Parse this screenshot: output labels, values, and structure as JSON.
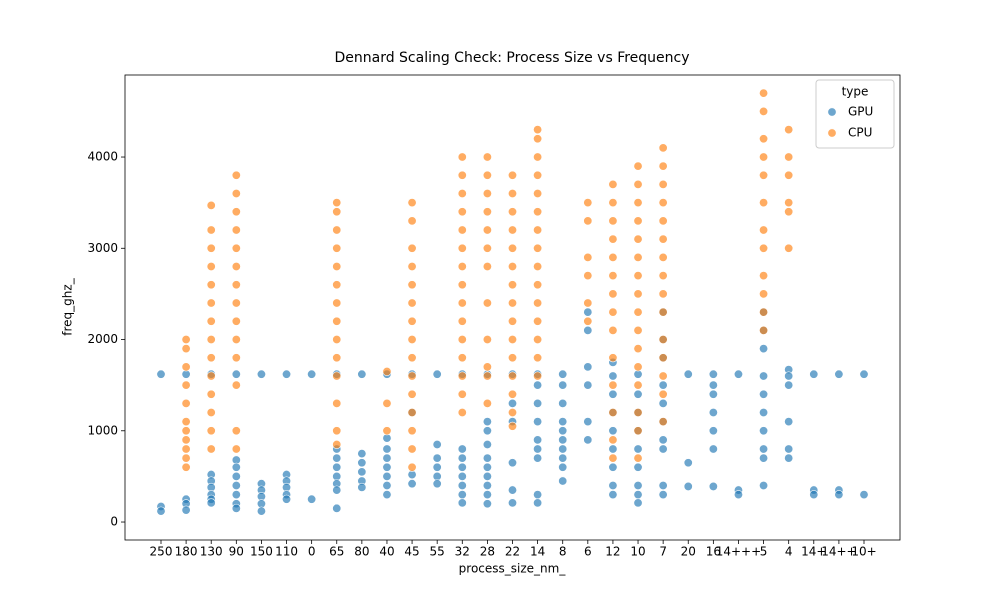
{
  "chart_data": {
    "type": "scatter",
    "title": "Dennard Scaling Check: Process Size vs Frequency",
    "x_label": "process_size_nm_",
    "y_label": "freq_ghz_",
    "legend_title": "type",
    "legend_position": "upper right",
    "categories": [
      "250",
      "180",
      "130",
      "90",
      "150",
      "110",
      "0",
      "65",
      "80",
      "40",
      "45",
      "55",
      "32",
      "28",
      "22",
      "14",
      "8",
      "6",
      "12",
      "10",
      "7",
      "20",
      "16",
      "14+++",
      "5",
      "4",
      "14+",
      "14++",
      "10+"
    ],
    "ylim": [
      -197,
      4899
    ],
    "yticks": [
      0,
      1000,
      2000,
      3000,
      4000
    ],
    "series": [
      {
        "name": "GPU",
        "color": "#1f77b4",
        "x": [
          "250",
          "250",
          "250",
          "180",
          "180",
          "180",
          "180",
          "130",
          "130",
          "130",
          "130",
          "130",
          "130",
          "130",
          "90",
          "90",
          "90",
          "90",
          "90",
          "90",
          "90",
          "90",
          "150",
          "150",
          "150",
          "150",
          "150",
          "150",
          "110",
          "110",
          "110",
          "110",
          "110",
          "110",
          "0",
          "0",
          "65",
          "65",
          "65",
          "65",
          "65",
          "65",
          "65",
          "65",
          "80",
          "80",
          "80",
          "80",
          "80",
          "80",
          "40",
          "40",
          "40",
          "40",
          "40",
          "40",
          "40",
          "40",
          "45",
          "45",
          "45",
          "45",
          "55",
          "55",
          "55",
          "55",
          "55",
          "55",
          "32",
          "32",
          "32",
          "32",
          "32",
          "32",
          "32",
          "32",
          "28",
          "28",
          "28",
          "28",
          "28",
          "28",
          "28",
          "28",
          "28",
          "28",
          "22",
          "22",
          "22",
          "22",
          "22",
          "22",
          "14",
          "14",
          "14",
          "14",
          "14",
          "14",
          "14",
          "14",
          "14",
          "8",
          "8",
          "8",
          "8",
          "8",
          "8",
          "8",
          "8",
          "8",
          "8",
          "6",
          "6",
          "6",
          "6",
          "6",
          "6",
          "12",
          "12",
          "12",
          "12",
          "12",
          "12",
          "12",
          "12",
          "12",
          "10",
          "10",
          "10",
          "10",
          "10",
          "10",
          "10",
          "10",
          "10",
          "7",
          "7",
          "7",
          "7",
          "7",
          "7",
          "7",
          "7",
          "7",
          "7",
          "20",
          "20",
          "20",
          "16",
          "16",
          "16",
          "16",
          "16",
          "16",
          "16",
          "14+++",
          "14+++",
          "14+++",
          "5",
          "5",
          "5",
          "5",
          "5",
          "5",
          "5",
          "5",
          "5",
          "5",
          "4",
          "4",
          "4",
          "4",
          "4",
          "4",
          "14+",
          "14+",
          "14+",
          "14++",
          "14++",
          "14++",
          "10+",
          "10+"
        ],
        "values": [
          1620,
          170,
          120,
          1620,
          250,
          200,
          130,
          1620,
          520,
          450,
          380,
          300,
          250,
          210,
          1620,
          680,
          600,
          500,
          400,
          300,
          200,
          150,
          1620,
          420,
          350,
          280,
          200,
          120,
          1620,
          520,
          450,
          380,
          300,
          250,
          1620,
          250,
          1620,
          800,
          700,
          600,
          500,
          420,
          350,
          150,
          1620,
          750,
          650,
          550,
          450,
          380,
          1620,
          920,
          800,
          700,
          600,
          500,
          400,
          300,
          1620,
          1200,
          520,
          420,
          1620,
          850,
          700,
          600,
          500,
          420,
          1620,
          800,
          700,
          600,
          500,
          400,
          300,
          210,
          1620,
          1100,
          1000,
          850,
          700,
          600,
          500,
          400,
          300,
          200,
          1620,
          1300,
          1100,
          650,
          350,
          210,
          1620,
          1500,
          1300,
          1100,
          900,
          800,
          700,
          300,
          210,
          1620,
          1500,
          1300,
          1100,
          1000,
          900,
          800,
          700,
          600,
          450,
          2300,
          2100,
          1700,
          1500,
          1100,
          900,
          1750,
          1600,
          1400,
          1200,
          1000,
          800,
          600,
          400,
          300,
          1620,
          1400,
          1200,
          1000,
          800,
          600,
          400,
          300,
          210,
          2300,
          2000,
          1800,
          1500,
          1300,
          1100,
          900,
          800,
          400,
          300,
          1620,
          650,
          390,
          1620,
          1500,
          1400,
          1200,
          1000,
          800,
          390,
          1620,
          350,
          300,
          2300,
          2100,
          1900,
          1600,
          1400,
          1200,
          1000,
          800,
          700,
          400,
          1670,
          1600,
          1500,
          1100,
          800,
          700,
          1620,
          350,
          300,
          1620,
          350,
          300,
          1620,
          300
        ]
      },
      {
        "name": "CPU",
        "color": "#ff7f0e",
        "x": [
          "180",
          "180",
          "180",
          "180",
          "180",
          "180",
          "180",
          "180",
          "180",
          "180",
          "180",
          "130",
          "130",
          "130",
          "130",
          "130",
          "130",
          "130",
          "130",
          "130",
          "130",
          "130",
          "130",
          "130",
          "130",
          "90",
          "90",
          "90",
          "90",
          "90",
          "90",
          "90",
          "90",
          "90",
          "90",
          "90",
          "90",
          "90",
          "90",
          "65",
          "65",
          "65",
          "65",
          "65",
          "65",
          "65",
          "65",
          "65",
          "65",
          "65",
          "65",
          "65",
          "65",
          "40",
          "40",
          "40",
          "45",
          "45",
          "45",
          "45",
          "45",
          "45",
          "45",
          "45",
          "45",
          "45",
          "45",
          "45",
          "45",
          "45",
          "45",
          "32",
          "32",
          "32",
          "32",
          "32",
          "32",
          "32",
          "32",
          "32",
          "32",
          "32",
          "32",
          "32",
          "32",
          "32",
          "28",
          "28",
          "28",
          "28",
          "28",
          "28",
          "28",
          "28",
          "28",
          "28",
          "28",
          "28",
          "22",
          "22",
          "22",
          "22",
          "22",
          "22",
          "22",
          "22",
          "22",
          "22",
          "22",
          "22",
          "22",
          "22",
          "22",
          "14",
          "14",
          "14",
          "14",
          "14",
          "14",
          "14",
          "14",
          "14",
          "14",
          "14",
          "14",
          "14",
          "14",
          "14",
          "6",
          "6",
          "6",
          "6",
          "6",
          "6",
          "12",
          "12",
          "12",
          "12",
          "12",
          "12",
          "12",
          "12",
          "12",
          "12",
          "12",
          "12",
          "12",
          "12",
          "10",
          "10",
          "10",
          "10",
          "10",
          "10",
          "10",
          "10",
          "10",
          "10",
          "10",
          "10",
          "10",
          "10",
          "10",
          "10",
          "7",
          "7",
          "7",
          "7",
          "7",
          "7",
          "7",
          "7",
          "7",
          "7",
          "7",
          "7",
          "7",
          "7",
          "7",
          "5",
          "5",
          "5",
          "5",
          "5",
          "5",
          "5",
          "5",
          "5",
          "5",
          "5",
          "5",
          "4",
          "4",
          "4",
          "4",
          "4",
          "4"
        ],
        "values": [
          2000,
          1900,
          1700,
          1500,
          1300,
          1100,
          1000,
          900,
          800,
          700,
          600,
          3470,
          3200,
          3000,
          2800,
          2600,
          2400,
          2200,
          2000,
          1800,
          1600,
          1400,
          1200,
          1000,
          800,
          3800,
          3600,
          3400,
          3200,
          3000,
          2800,
          2600,
          2400,
          2200,
          2000,
          1800,
          1500,
          1000,
          800,
          3500,
          3400,
          3200,
          3000,
          2800,
          2600,
          2400,
          2200,
          2000,
          1800,
          1600,
          1300,
          1000,
          850,
          1650,
          1300,
          1000,
          3500,
          3300,
          3000,
          2800,
          2600,
          2400,
          2200,
          2000,
          1800,
          1600,
          1400,
          1200,
          1000,
          800,
          600,
          4000,
          3800,
          3600,
          3400,
          3200,
          3000,
          2800,
          2600,
          2400,
          2200,
          2000,
          1800,
          1600,
          1400,
          1200,
          4000,
          3800,
          3600,
          3400,
          3200,
          3000,
          2800,
          2400,
          2000,
          1700,
          1600,
          1300,
          3800,
          3600,
          3400,
          3200,
          3000,
          2800,
          2600,
          2400,
          2200,
          2000,
          1800,
          1600,
          1400,
          1200,
          1050,
          4300,
          4200,
          4000,
          3800,
          3600,
          3400,
          3200,
          3000,
          2800,
          2600,
          2400,
          2200,
          2000,
          1800,
          1600,
          3500,
          3300,
          2900,
          2700,
          2400,
          2200,
          3700,
          3500,
          3300,
          3100,
          2900,
          2700,
          2500,
          2300,
          2100,
          1800,
          1500,
          1200,
          900,
          700,
          3900,
          3700,
          3500,
          3300,
          3100,
          2900,
          2700,
          2500,
          2300,
          2100,
          1900,
          1700,
          1500,
          1200,
          1000,
          700,
          4100,
          3900,
          3700,
          3500,
          3300,
          3100,
          2900,
          2700,
          2500,
          2300,
          2000,
          1800,
          1600,
          1400,
          1100,
          4700,
          4500,
          4200,
          4000,
          3800,
          3500,
          3200,
          3000,
          2700,
          2500,
          2300,
          2100,
          4300,
          4000,
          3800,
          3500,
          3400,
          3000
        ]
      }
    ]
  }
}
